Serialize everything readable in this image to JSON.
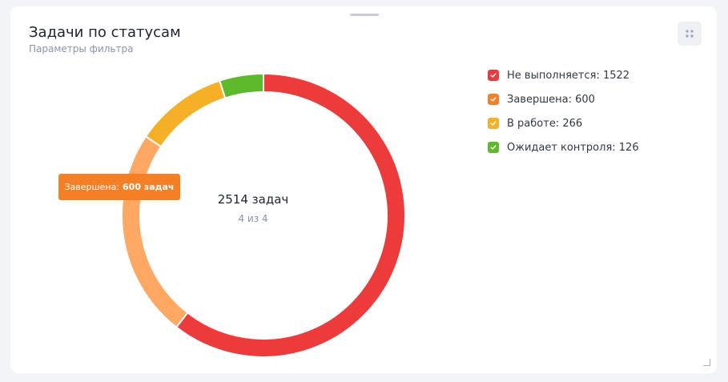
{
  "header": {
    "title": "Задачи по статусам",
    "subtitle": "Параметры фильтра"
  },
  "center": {
    "total": "2514 задач",
    "count": "4 из 4"
  },
  "tooltip": {
    "label": "Завершена:",
    "value": "600 задач"
  },
  "icons": {
    "menu": "grid-dots-icon",
    "legend_check": "check-icon",
    "resize": "resize-corner-icon"
  },
  "chart_data": {
    "type": "pie",
    "variant": "donut",
    "title": "Задачи по статусам",
    "total": 2514,
    "series": [
      {
        "name": "Не выполняется",
        "value": 1522,
        "color": "#ed3b3b",
        "legend_label": "Не выполняется: 1522"
      },
      {
        "name": "Завершена",
        "value": 600,
        "color": "#f47f25",
        "slice_color": "#ffa864",
        "highlighted": true,
        "legend_label": "Завершена: 600"
      },
      {
        "name": "В работе",
        "value": 266,
        "color": "#f6b027",
        "legend_label": "В работе: 266"
      },
      {
        "name": "Ожидает контроля",
        "value": 126,
        "color": "#5eba2b",
        "legend_label": "Ожидает контроля: 126"
      }
    ],
    "legend_position": "right"
  }
}
